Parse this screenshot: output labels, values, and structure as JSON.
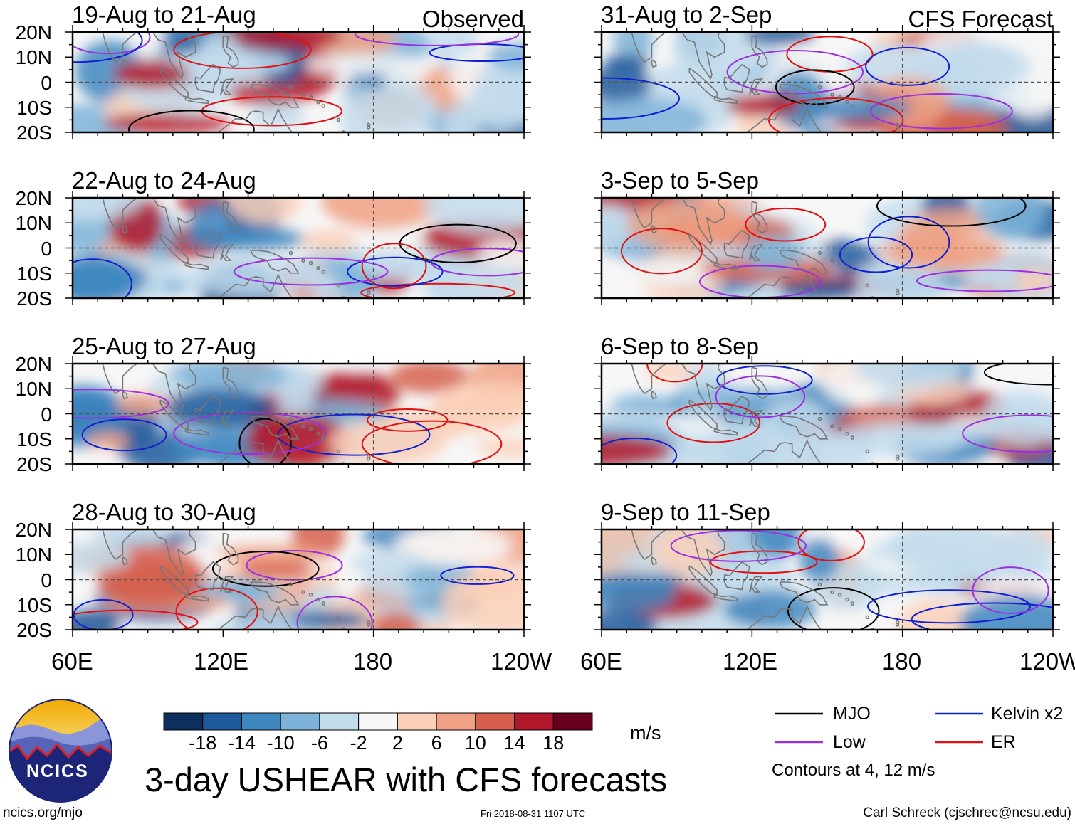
{
  "figure_title": "3-day USHEAR with CFS forecasts",
  "column_labels": {
    "left": "Observed",
    "right": "CFS Forecast"
  },
  "panels": {
    "left": [
      "19-Aug to 21-Aug",
      "22-Aug to 24-Aug",
      "25-Aug to 27-Aug",
      "28-Aug to 30-Aug"
    ],
    "right": [
      "31-Aug to 2-Sep",
      "3-Sep to 5-Sep",
      "6-Sep to 8-Sep",
      "9-Sep to 11-Sep"
    ]
  },
  "lat_labels": [
    "20N",
    "10N",
    "0",
    "10S",
    "20S"
  ],
  "lon_labels": [
    "60E",
    "120E",
    "180",
    "120W"
  ],
  "colorbar": {
    "unit": "m/s",
    "tick_labels": [
      "-18",
      "-14",
      "-10",
      "-6",
      "-2",
      "2",
      "6",
      "10",
      "14",
      "18"
    ],
    "colors": [
      "#0d2f5e",
      "#1d5a9c",
      "#3e87bf",
      "#7db3d8",
      "#c3dcec",
      "#f7f7f7",
      "#fbd0b9",
      "#f0a183",
      "#d6604d",
      "#b2182b",
      "#67001f"
    ]
  },
  "legend": {
    "items": [
      {
        "label": "MJO",
        "color": "#000000"
      },
      {
        "label": "Kelvin x2",
        "color": "#1020d0"
      },
      {
        "label": "Low",
        "color": "#9b30e0"
      },
      {
        "label": "ER",
        "color": "#e01010"
      }
    ],
    "note": "Contours at 4, 12 m/s"
  },
  "logo_text": "NCICS",
  "footer": {
    "url": "ncics.org/mjo",
    "timestamp": "Fri 2018-08-31 1107 UTC",
    "credit": "Carl Schreck (cjschrec@ncsu.edu)"
  }
}
